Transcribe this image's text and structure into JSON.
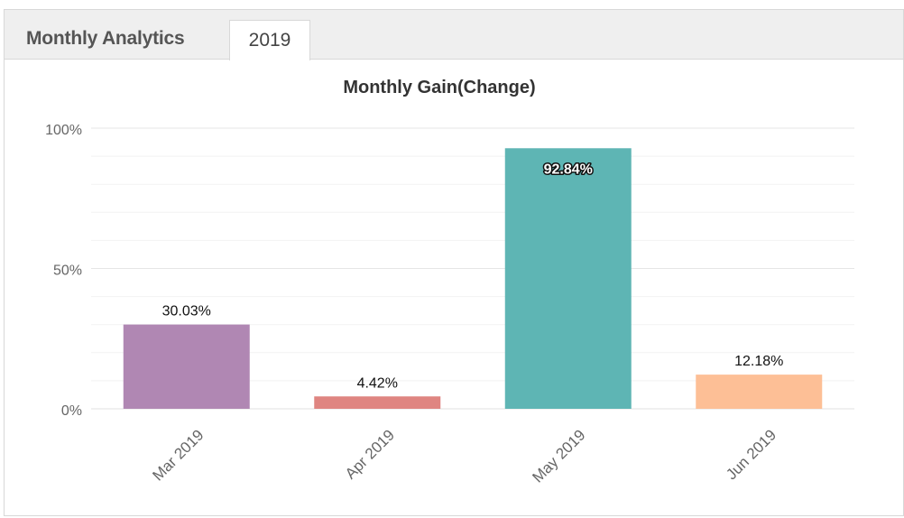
{
  "header": {
    "title": "Monthly Analytics",
    "tabs": [
      {
        "label": "2019",
        "active": true
      }
    ]
  },
  "chart_data": {
    "type": "bar",
    "title": "Monthly Gain(Change)",
    "xlabel": "",
    "ylabel": "",
    "categories": [
      "Mar 2019",
      "Apr 2019",
      "May 2019",
      "Jun 2019"
    ],
    "values": [
      30.03,
      4.42,
      92.84,
      12.18
    ],
    "data_labels": [
      "30.03%",
      "4.42%",
      "92.84%",
      "12.18%"
    ],
    "colors": [
      "#b087b3",
      "#df8581",
      "#5eb5b4",
      "#fdbf96"
    ],
    "ylim": [
      0,
      100
    ],
    "yticks": [
      0,
      50,
      100
    ],
    "ytick_labels": [
      "0%",
      "50%",
      "100%"
    ],
    "grid": true,
    "legend": "none"
  }
}
